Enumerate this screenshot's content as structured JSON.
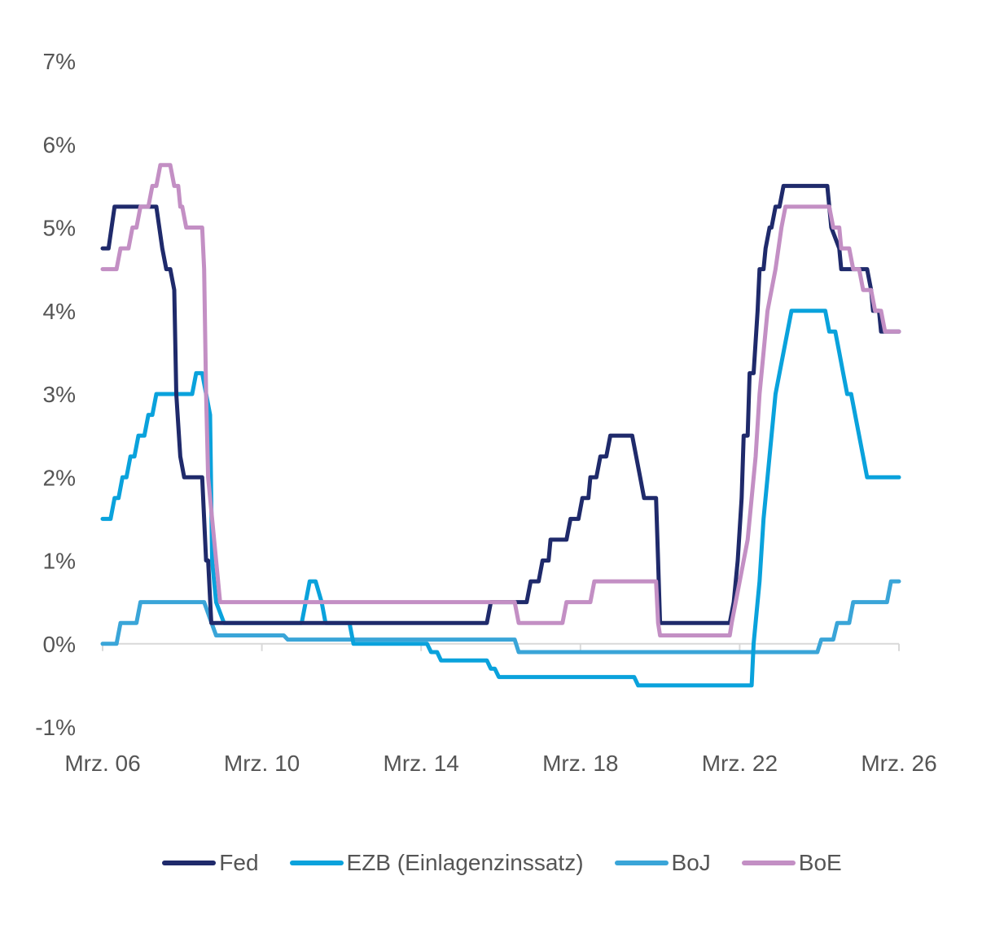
{
  "chart_data": {
    "type": "line",
    "title": "",
    "xlabel": "",
    "ylabel": "",
    "x_range": [
      2006.25,
      2026.25
    ],
    "ylim": [
      -1,
      7
    ],
    "y_ticks": [
      -1,
      0,
      1,
      2,
      3,
      4,
      5,
      6,
      7
    ],
    "y_tick_labels": [
      "-1%",
      "0%",
      "1%",
      "2%",
      "3%",
      "4%",
      "5%",
      "6%",
      "7%"
    ],
    "x_ticks": [
      2006.25,
      2010.25,
      2014.25,
      2018.25,
      2022.25,
      2026.25
    ],
    "x_tick_labels": [
      "Mrz. 06",
      "Mrz. 10",
      "Mrz. 14",
      "Mrz. 18",
      "Mrz. 22",
      "Mrz. 26"
    ],
    "grid": false,
    "legend_position": "bottom",
    "series": [
      {
        "name": "Fed",
        "color": "#1f2a6b",
        "points": [
          [
            2006.25,
            4.75
          ],
          [
            2006.4,
            4.75
          ],
          [
            2006.55,
            5.25
          ],
          [
            2007.6,
            5.25
          ],
          [
            2007.75,
            4.75
          ],
          [
            2007.85,
            4.5
          ],
          [
            2007.95,
            4.5
          ],
          [
            2008.05,
            4.25
          ],
          [
            2008.1,
            3.0
          ],
          [
            2008.2,
            2.25
          ],
          [
            2008.3,
            2.0
          ],
          [
            2008.75,
            2.0
          ],
          [
            2008.85,
            1.0
          ],
          [
            2008.9,
            1.0
          ],
          [
            2008.98,
            0.25
          ],
          [
            2015.9,
            0.25
          ],
          [
            2016.0,
            0.5
          ],
          [
            2016.9,
            0.5
          ],
          [
            2017.0,
            0.75
          ],
          [
            2017.2,
            0.75
          ],
          [
            2017.3,
            1.0
          ],
          [
            2017.45,
            1.0
          ],
          [
            2017.5,
            1.25
          ],
          [
            2017.9,
            1.25
          ],
          [
            2018.0,
            1.5
          ],
          [
            2018.2,
            1.5
          ],
          [
            2018.3,
            1.75
          ],
          [
            2018.45,
            1.75
          ],
          [
            2018.5,
            2.0
          ],
          [
            2018.65,
            2.0
          ],
          [
            2018.75,
            2.25
          ],
          [
            2018.9,
            2.25
          ],
          [
            2019.0,
            2.5
          ],
          [
            2019.55,
            2.5
          ],
          [
            2019.65,
            2.25
          ],
          [
            2019.75,
            2.0
          ],
          [
            2019.85,
            1.75
          ],
          [
            2020.15,
            1.75
          ],
          [
            2020.2,
            1.0
          ],
          [
            2020.25,
            0.25
          ],
          [
            2022.0,
            0.25
          ],
          [
            2022.1,
            0.5
          ],
          [
            2022.2,
            1.0
          ],
          [
            2022.3,
            1.75
          ],
          [
            2022.35,
            2.5
          ],
          [
            2022.45,
            2.5
          ],
          [
            2022.5,
            3.25
          ],
          [
            2022.6,
            3.25
          ],
          [
            2022.7,
            4.0
          ],
          [
            2022.75,
            4.5
          ],
          [
            2022.85,
            4.5
          ],
          [
            2022.9,
            4.75
          ],
          [
            2023.0,
            5.0
          ],
          [
            2023.05,
            5.0
          ],
          [
            2023.15,
            5.25
          ],
          [
            2023.25,
            5.25
          ],
          [
            2023.35,
            5.5
          ],
          [
            2024.45,
            5.5
          ],
          [
            2024.55,
            5.0
          ],
          [
            2024.75,
            4.75
          ],
          [
            2024.8,
            4.5
          ],
          [
            2025.45,
            4.5
          ],
          [
            2025.55,
            4.25
          ],
          [
            2025.6,
            4.0
          ],
          [
            2025.75,
            4.0
          ],
          [
            2025.8,
            3.75
          ],
          [
            2026.25,
            3.75
          ]
        ]
      },
      {
        "name": "EZB (Einlagenzinssatz)",
        "color": "#0aa2dc",
        "points": [
          [
            2006.25,
            1.5
          ],
          [
            2006.45,
            1.5
          ],
          [
            2006.55,
            1.75
          ],
          [
            2006.65,
            1.75
          ],
          [
            2006.75,
            2.0
          ],
          [
            2006.85,
            2.0
          ],
          [
            2006.95,
            2.25
          ],
          [
            2007.05,
            2.25
          ],
          [
            2007.15,
            2.5
          ],
          [
            2007.3,
            2.5
          ],
          [
            2007.4,
            2.75
          ],
          [
            2007.5,
            2.75
          ],
          [
            2007.6,
            3.0
          ],
          [
            2008.5,
            3.0
          ],
          [
            2008.6,
            3.25
          ],
          [
            2008.75,
            3.25
          ],
          [
            2008.95,
            2.75
          ],
          [
            2009.0,
            1.0
          ],
          [
            2009.1,
            0.5
          ],
          [
            2009.3,
            0.25
          ],
          [
            2011.25,
            0.25
          ],
          [
            2011.35,
            0.5
          ],
          [
            2011.45,
            0.75
          ],
          [
            2011.6,
            0.75
          ],
          [
            2011.75,
            0.5
          ],
          [
            2011.85,
            0.25
          ],
          [
            2012.45,
            0.25
          ],
          [
            2012.55,
            0.0
          ],
          [
            2014.4,
            0.0
          ],
          [
            2014.5,
            -0.1
          ],
          [
            2014.65,
            -0.1
          ],
          [
            2014.75,
            -0.2
          ],
          [
            2015.9,
            -0.2
          ],
          [
            2016.0,
            -0.3
          ],
          [
            2016.1,
            -0.3
          ],
          [
            2016.2,
            -0.4
          ],
          [
            2019.6,
            -0.4
          ],
          [
            2019.7,
            -0.5
          ],
          [
            2022.55,
            -0.5
          ],
          [
            2022.6,
            0.0
          ],
          [
            2022.75,
            0.75
          ],
          [
            2022.85,
            1.5
          ],
          [
            2022.95,
            2.0
          ],
          [
            2023.05,
            2.5
          ],
          [
            2023.15,
            3.0
          ],
          [
            2023.25,
            3.25
          ],
          [
            2023.35,
            3.5
          ],
          [
            2023.45,
            3.75
          ],
          [
            2023.55,
            4.0
          ],
          [
            2024.4,
            4.0
          ],
          [
            2024.5,
            3.75
          ],
          [
            2024.65,
            3.75
          ],
          [
            2024.75,
            3.5
          ],
          [
            2024.85,
            3.25
          ],
          [
            2024.95,
            3.0
          ],
          [
            2025.05,
            3.0
          ],
          [
            2025.15,
            2.75
          ],
          [
            2025.25,
            2.5
          ],
          [
            2025.35,
            2.25
          ],
          [
            2025.45,
            2.0
          ],
          [
            2026.25,
            2.0
          ]
        ]
      },
      {
        "name": "BoJ",
        "color": "#3aa5d8",
        "points": [
          [
            2006.25,
            0.0
          ],
          [
            2006.6,
            0.0
          ],
          [
            2006.7,
            0.25
          ],
          [
            2007.1,
            0.25
          ],
          [
            2007.2,
            0.5
          ],
          [
            2008.8,
            0.5
          ],
          [
            2008.95,
            0.3
          ],
          [
            2009.1,
            0.1
          ],
          [
            2010.8,
            0.1
          ],
          [
            2010.9,
            0.05
          ],
          [
            2016.6,
            0.05
          ],
          [
            2016.7,
            -0.1
          ],
          [
            2024.2,
            -0.1
          ],
          [
            2024.3,
            0.05
          ],
          [
            2024.6,
            0.05
          ],
          [
            2024.7,
            0.25
          ],
          [
            2025.0,
            0.25
          ],
          [
            2025.1,
            0.5
          ],
          [
            2025.95,
            0.5
          ],
          [
            2026.05,
            0.75
          ],
          [
            2026.25,
            0.75
          ]
        ]
      },
      {
        "name": "BoE",
        "color": "#c38fc4",
        "points": [
          [
            2006.25,
            4.5
          ],
          [
            2006.6,
            4.5
          ],
          [
            2006.7,
            4.75
          ],
          [
            2006.9,
            4.75
          ],
          [
            2007.0,
            5.0
          ],
          [
            2007.1,
            5.0
          ],
          [
            2007.2,
            5.25
          ],
          [
            2007.4,
            5.25
          ],
          [
            2007.5,
            5.5
          ],
          [
            2007.6,
            5.5
          ],
          [
            2007.7,
            5.75
          ],
          [
            2007.95,
            5.75
          ],
          [
            2008.05,
            5.5
          ],
          [
            2008.15,
            5.5
          ],
          [
            2008.2,
            5.25
          ],
          [
            2008.25,
            5.25
          ],
          [
            2008.35,
            5.0
          ],
          [
            2008.75,
            5.0
          ],
          [
            2008.8,
            4.5
          ],
          [
            2008.85,
            3.0
          ],
          [
            2008.9,
            2.0
          ],
          [
            2009.0,
            1.5
          ],
          [
            2009.1,
            1.0
          ],
          [
            2009.2,
            0.5
          ],
          [
            2016.6,
            0.5
          ],
          [
            2016.7,
            0.25
          ],
          [
            2017.8,
            0.25
          ],
          [
            2017.9,
            0.5
          ],
          [
            2018.5,
            0.5
          ],
          [
            2018.6,
            0.75
          ],
          [
            2020.15,
            0.75
          ],
          [
            2020.2,
            0.25
          ],
          [
            2020.25,
            0.1
          ],
          [
            2022.0,
            0.1
          ],
          [
            2022.05,
            0.25
          ],
          [
            2022.15,
            0.5
          ],
          [
            2022.25,
            0.75
          ],
          [
            2022.35,
            1.0
          ],
          [
            2022.45,
            1.25
          ],
          [
            2022.55,
            1.75
          ],
          [
            2022.65,
            2.25
          ],
          [
            2022.75,
            3.0
          ],
          [
            2022.85,
            3.5
          ],
          [
            2022.95,
            4.0
          ],
          [
            2023.05,
            4.25
          ],
          [
            2023.15,
            4.5
          ],
          [
            2023.3,
            5.0
          ],
          [
            2023.4,
            5.25
          ],
          [
            2024.5,
            5.25
          ],
          [
            2024.6,
            5.0
          ],
          [
            2024.75,
            5.0
          ],
          [
            2024.8,
            4.75
          ],
          [
            2025.0,
            4.75
          ],
          [
            2025.1,
            4.5
          ],
          [
            2025.25,
            4.5
          ],
          [
            2025.35,
            4.25
          ],
          [
            2025.55,
            4.25
          ],
          [
            2025.65,
            4.0
          ],
          [
            2025.8,
            4.0
          ],
          [
            2025.9,
            3.75
          ],
          [
            2026.25,
            3.75
          ]
        ]
      }
    ]
  }
}
